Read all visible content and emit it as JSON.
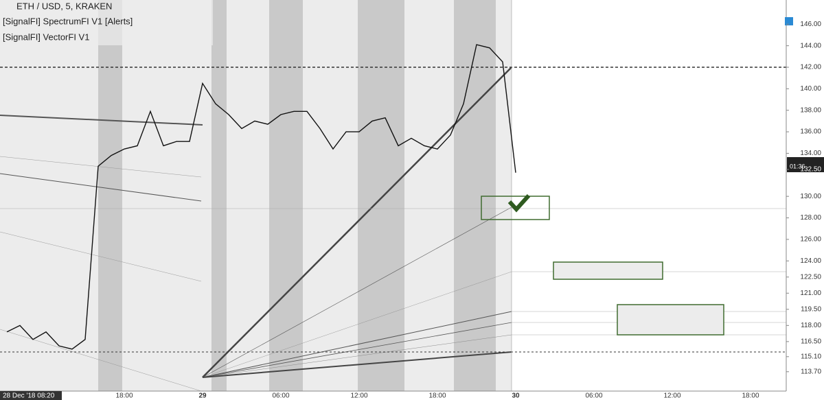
{
  "chart_data": {
    "type": "line",
    "title": "ETH / USD, 5, KRAKEN",
    "indicators": [
      "[SignalFI] SpectrumFI V1 [Alerts]",
      "[SignalFI] VectorFI V1"
    ],
    "crosshair_label": "28 Dec '18 08:20",
    "countdown": "01:36",
    "categories": [
      null,
      null,
      null,
      null,
      null,
      null,
      null,
      null,
      null,
      "18:00",
      null,
      null,
      null,
      null,
      null,
      "29",
      null,
      null,
      null,
      null,
      null,
      "06:00",
      null,
      null,
      null,
      null,
      null,
      "12:00",
      null,
      null,
      null,
      null,
      null,
      "18:00",
      null,
      null,
      null,
      null,
      null,
      "30",
      null,
      null,
      null,
      null,
      null,
      "06:00",
      null,
      null,
      null,
      null,
      null,
      "12:00",
      null,
      null,
      null,
      null,
      null,
      "18:00",
      null,
      null,
      null
    ],
    "values": [
      117.4,
      118.0,
      116.7,
      117.4,
      116.1,
      115.8,
      116.7,
      132.8,
      133.8,
      134.4,
      134.7,
      137.9,
      134.7,
      135.1,
      135.1,
      140.5,
      138.6,
      137.6,
      136.3,
      137.0,
      136.7,
      137.6,
      137.9,
      137.9,
      136.3,
      134.4,
      136.0,
      136.0,
      137.0,
      137.3,
      134.7,
      135.4,
      134.7,
      134.4,
      135.7,
      138.6,
      144.1,
      143.8,
      142.5,
      132.2,
      null,
      null,
      null,
      null,
      null,
      null,
      null,
      null,
      null,
      null,
      null,
      null,
      null,
      null,
      null,
      null,
      null,
      null,
      null,
      null,
      null
    ],
    "color": "#111111",
    "ylim": [
      111.9,
      148.25
    ],
    "yticks": [
      {
        "value": 146,
        "label": "146.00"
      },
      {
        "value": 144,
        "label": "144.00"
      },
      {
        "value": 142,
        "label": "142.00"
      },
      {
        "value": 140,
        "label": "140.00"
      },
      {
        "value": 138,
        "label": "138.00"
      },
      {
        "value": 136,
        "label": "136.00"
      },
      {
        "value": 134,
        "label": "134.00"
      },
      {
        "value": 132.5,
        "label": "132.50"
      },
      {
        "value": 130,
        "label": "130.00"
      },
      {
        "value": 128,
        "label": "128.00"
      },
      {
        "value": 126,
        "label": "126.00"
      },
      {
        "value": 124,
        "label": "124.00"
      },
      {
        "value": 122.5,
        "label": "122.50"
      },
      {
        "value": 121,
        "label": "121.00"
      },
      {
        "value": 119.5,
        "label": "119.50"
      },
      {
        "value": 118,
        "label": "118.00"
      },
      {
        "value": 116.5,
        "label": "116.50"
      },
      {
        "value": 115.1,
        "label": "115.10"
      },
      {
        "value": 113.7,
        "label": "113.70"
      }
    ],
    "grid": false
  }
}
